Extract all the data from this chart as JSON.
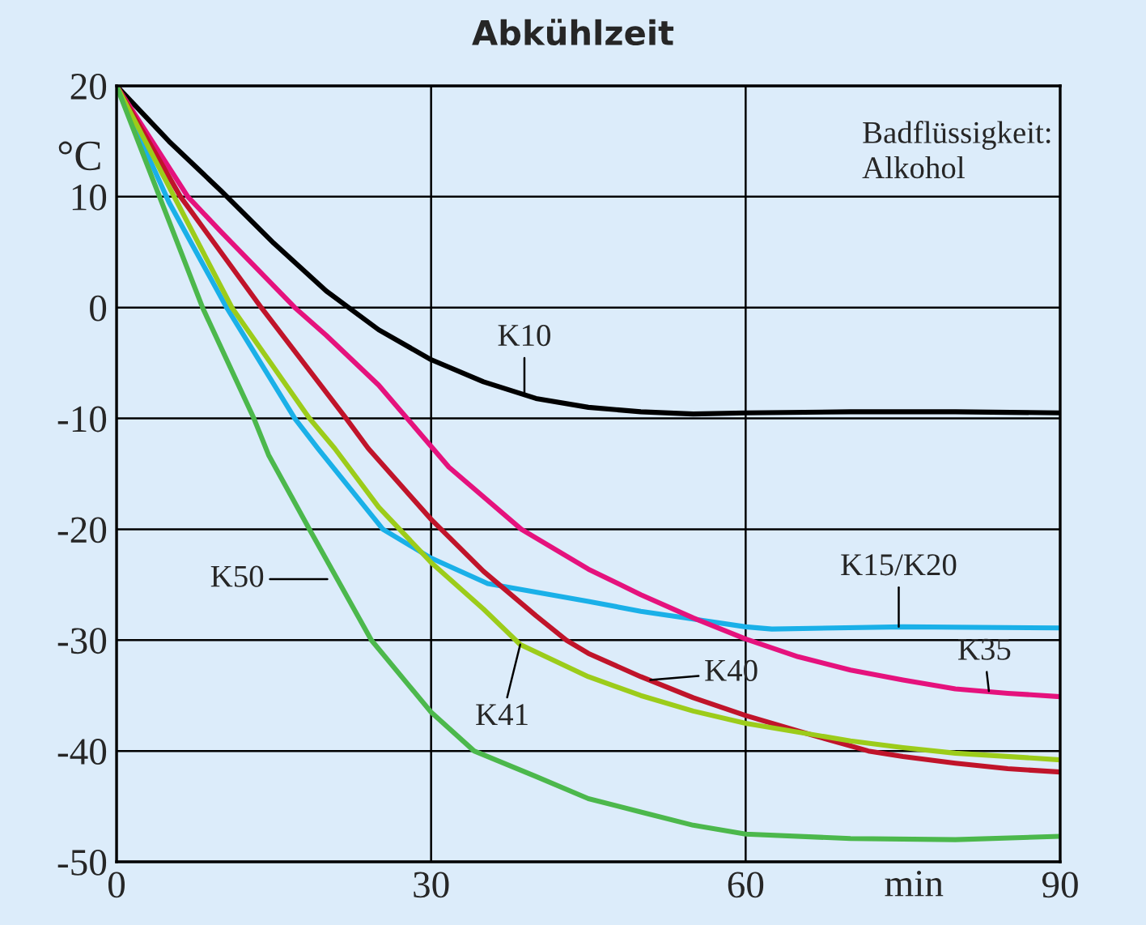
{
  "chart_data": {
    "type": "line",
    "title": "Abkühlzeit",
    "xlabel": "min",
    "ylabel": "°C",
    "xlim": [
      0,
      90
    ],
    "ylim": [
      -50,
      20
    ],
    "xticks": [
      0,
      30,
      60,
      90
    ],
    "yticks": [
      -50,
      -40,
      -30,
      -20,
      -10,
      0,
      10,
      20
    ],
    "grid": true,
    "legend": false,
    "marker": "none",
    "line_style": "solid",
    "series": [
      {
        "color": "#000000",
        "x": [
          0,
          5,
          10,
          15,
          20,
          25,
          30,
          35,
          40,
          45,
          50,
          55,
          60,
          70,
          80,
          90
        ],
        "values": [
          20,
          15,
          10.5,
          5.8,
          1.5,
          -2,
          -4.7,
          -6.7,
          -8.2,
          -9,
          -9.4,
          -9.6,
          -9.5,
          -9.4,
          -9.4,
          -9.5
        ]
      },
      {
        "color": "#1ab0e8",
        "x": [
          0,
          5,
          10.5,
          17,
          19.2,
          25.4,
          30,
          35.4,
          45,
          50,
          55,
          60,
          62.5,
          75,
          90
        ],
        "values": [
          20,
          9.5,
          0,
          -10,
          -12.7,
          -20,
          -22.6,
          -24.9,
          -26.5,
          -27.4,
          -28.1,
          -28.8,
          -29,
          -28.8,
          -28.9
        ]
      },
      {
        "color": "#e5127d",
        "x": [
          0,
          6.8,
          10,
          17,
          20,
          25,
          31.7,
          38.6,
          45,
          50,
          55,
          60,
          65,
          70,
          75,
          80,
          85,
          90
        ],
        "values": [
          20,
          10,
          6.8,
          0,
          -2.5,
          -7,
          -14.4,
          -20,
          -23.6,
          -25.9,
          -28,
          -29.9,
          -31.5,
          -32.7,
          -33.6,
          -34.4,
          -34.8,
          -35.1
        ]
      },
      {
        "color": "#c0142a",
        "x": [
          0,
          6.1,
          13.8,
          21.9,
          24,
          30,
          35,
          40,
          42.9,
          45,
          50,
          55,
          60,
          65,
          71.7,
          75,
          80,
          85,
          90
        ],
        "values": [
          20,
          10,
          0,
          -10,
          -12.7,
          -19.1,
          -23.8,
          -27.8,
          -30,
          -31.2,
          -33.3,
          -35.2,
          -36.8,
          -38.2,
          -40,
          -40.5,
          -41.1,
          -41.6,
          -41.9
        ]
      },
      {
        "color": "#9ccc1a",
        "x": [
          0,
          11,
          18.4,
          20.8,
          25,
          30,
          35,
          38.5,
          45,
          50,
          55,
          60,
          70,
          75,
          80,
          90
        ],
        "values": [
          20,
          0,
          -10,
          -12.7,
          -18,
          -23,
          -27.2,
          -30.4,
          -33.3,
          -35,
          -36.4,
          -37.5,
          -39.1,
          -39.7,
          -40.2,
          -40.8
        ]
      },
      {
        "color": "#4cb84c",
        "x": [
          0,
          8.2,
          13.1,
          14.5,
          18.4,
          24.3,
          30,
          34.1,
          40,
          45,
          50,
          55,
          60,
          70,
          80,
          90
        ],
        "values": [
          20,
          0,
          -10,
          -13.3,
          -20,
          -30,
          -36.5,
          -40,
          -42.3,
          -44.3,
          -45.5,
          -46.7,
          -47.5,
          -47.9,
          -48,
          -47.7
        ]
      }
    ],
    "annotations": [
      {
        "text": "K10",
        "x": 38.9,
        "y": -7.7
      },
      {
        "text": "K15/K20",
        "x": 74.6,
        "y": -28.8
      },
      {
        "text": "K35",
        "x": 83.2,
        "y": -34.6
      },
      {
        "text": "K40",
        "x": 50.9,
        "y": -33.6
      },
      {
        "text": "K41",
        "x": 38.5,
        "y": -30.4
      },
      {
        "text": "K50",
        "x": 20.1,
        "y": -24.5
      },
      "Badflüssigkeit:\nAlkohol"
    ]
  }
}
